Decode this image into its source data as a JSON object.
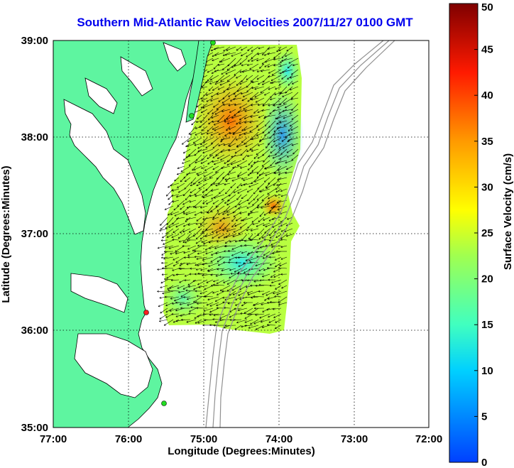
{
  "title": "Southern Mid-Atlantic Raw Velocities 2007/11/27 0100 GMT",
  "map": {
    "xlabel": "Longitude (Degrees:Minutes)",
    "ylabel": "Latitude (Degrees:Minutes)",
    "x_ticks": [
      "77:00",
      "76:00",
      "75:00",
      "74:00",
      "73:00",
      "72:00"
    ],
    "y_ticks": [
      "39:00",
      "38:00",
      "37:00",
      "36:00",
      "35:00"
    ],
    "lon_range": [
      -77,
      -72
    ],
    "lat_range": [
      35,
      39
    ],
    "grid": true,
    "land_color": "#5ef5a0",
    "station_colors": {
      "active": "#22dd22",
      "inactive": "#ff2020"
    }
  },
  "colorbar": {
    "label": "Surface Velocity (cm/s)",
    "ticks": [
      "0",
      "5",
      "10",
      "15",
      "20",
      "25",
      "30",
      "35",
      "40",
      "45",
      "50"
    ],
    "range": [
      0,
      50
    ]
  }
}
